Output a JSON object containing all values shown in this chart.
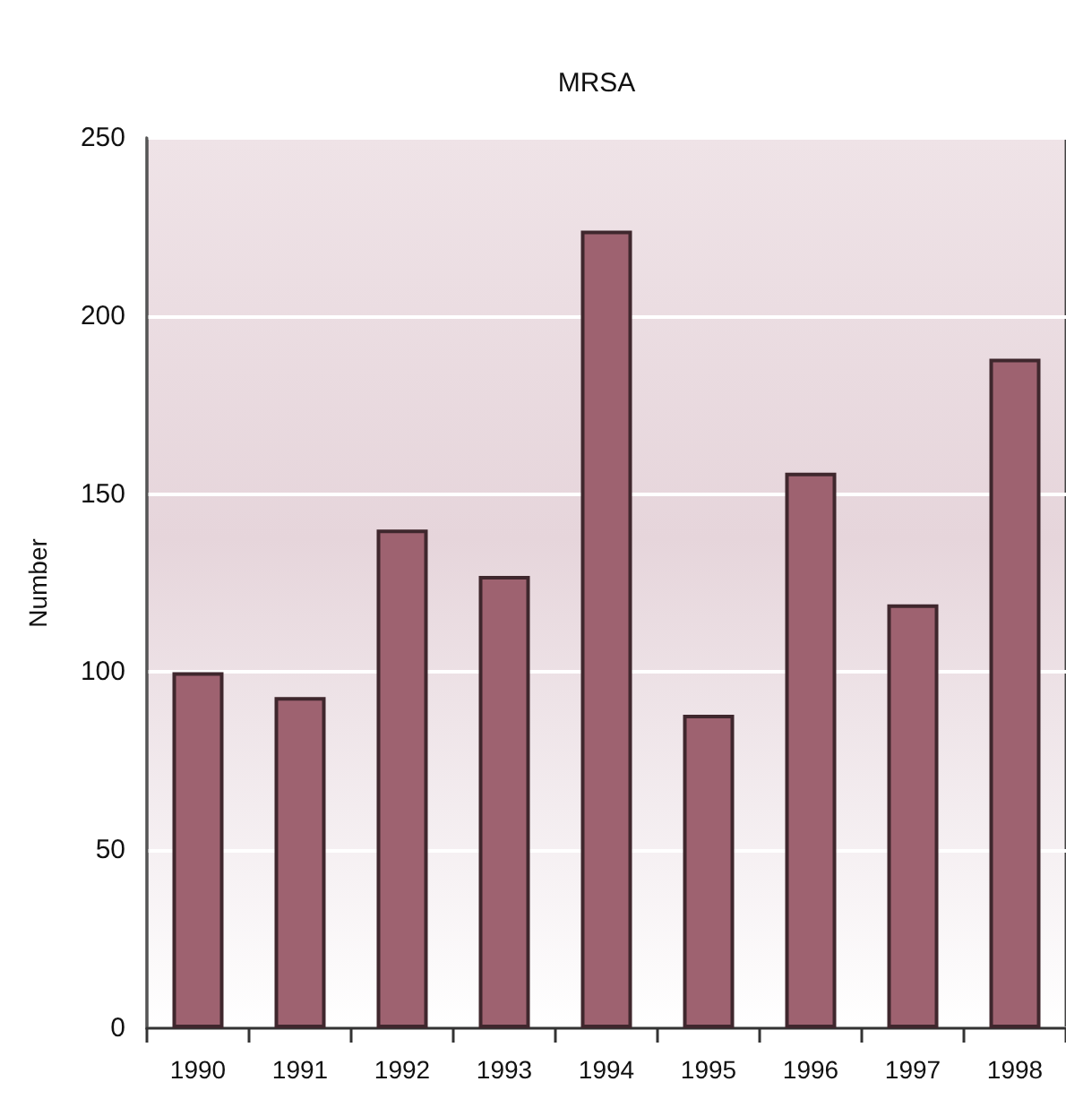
{
  "chart_data": {
    "type": "bar",
    "title": "MRSA",
    "ylabel": "Number",
    "categories": [
      "1990",
      "1991",
      "1992",
      "1993",
      "1994",
      "1995",
      "1996",
      "1997",
      "1998"
    ],
    "values": [
      100,
      93,
      140,
      127,
      224,
      88,
      156,
      119,
      188
    ],
    "color": "#9e6270",
    "ylim": [
      0,
      250
    ],
    "yticks": [
      0,
      50,
      100,
      150,
      200,
      250
    ],
    "grid": "y"
  }
}
